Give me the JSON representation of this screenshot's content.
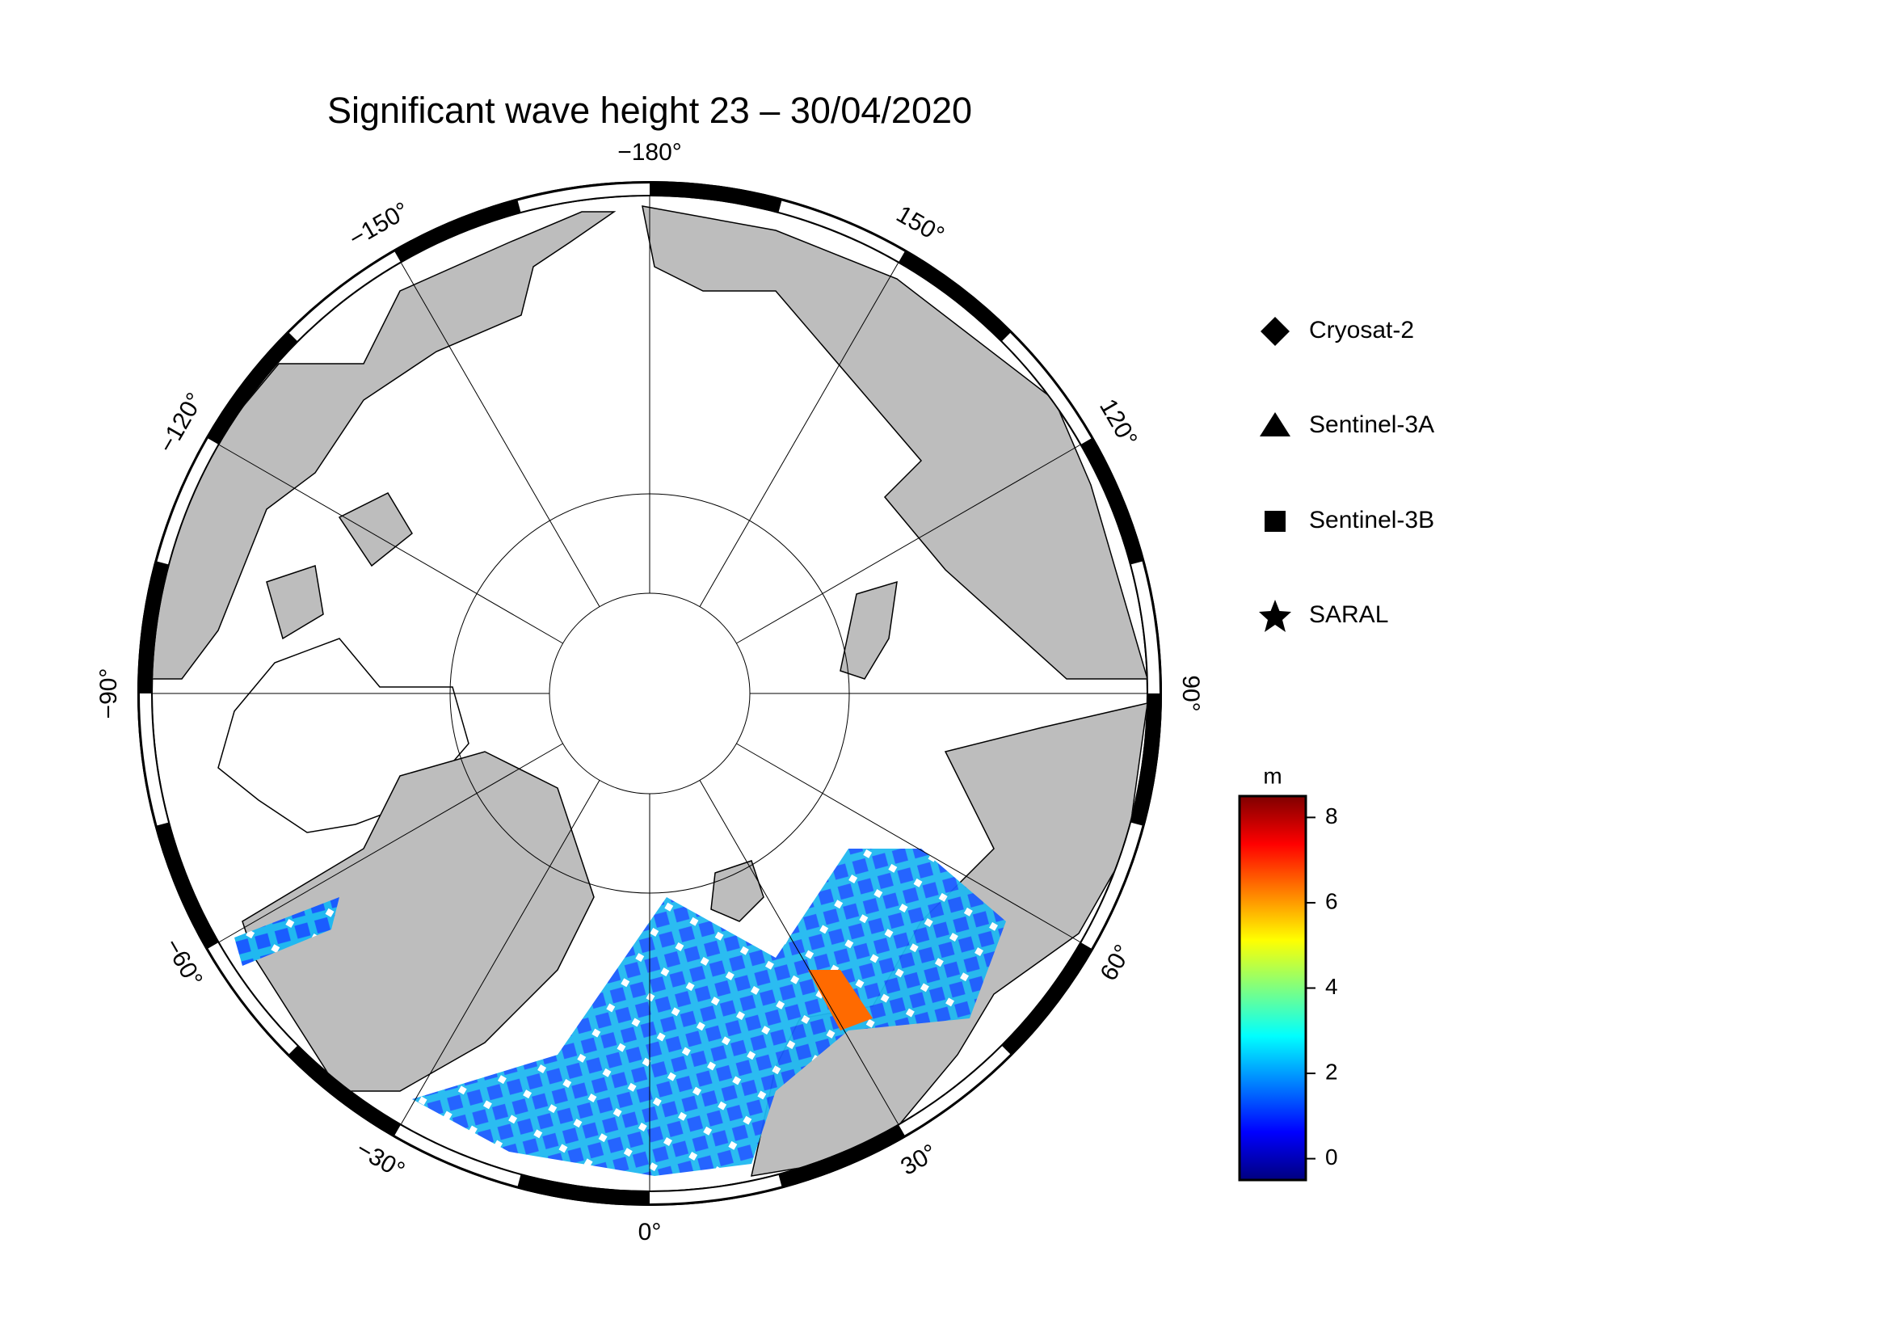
{
  "title": "Significant wave height 23 – 30/04/2020",
  "map": {
    "meridians": [
      {
        "value": -180,
        "label": "−180°"
      },
      {
        "value": 150,
        "label": "150°"
      },
      {
        "value": 120,
        "label": "120°"
      },
      {
        "value": 90,
        "label": "90°"
      },
      {
        "value": 60,
        "label": "60°"
      },
      {
        "value": 30,
        "label": "30°"
      },
      {
        "value": 0,
        "label": "0°"
      },
      {
        "value": -30,
        "label": "−30°"
      },
      {
        "value": -60,
        "label": "−60°"
      },
      {
        "value": -90,
        "label": "−90°"
      },
      {
        "value": -120,
        "label": "−120°"
      },
      {
        "value": -150,
        "label": "−150°"
      }
    ]
  },
  "legend": {
    "entries": [
      "Cryosat-2",
      "Sentinel-3A",
      "Sentinel-3B",
      "SARAL"
    ]
  },
  "colorbar": {
    "label": "m",
    "lim": [
      -0.5,
      8.5
    ],
    "ticks": [
      0,
      2,
      4,
      6,
      8
    ]
  }
}
